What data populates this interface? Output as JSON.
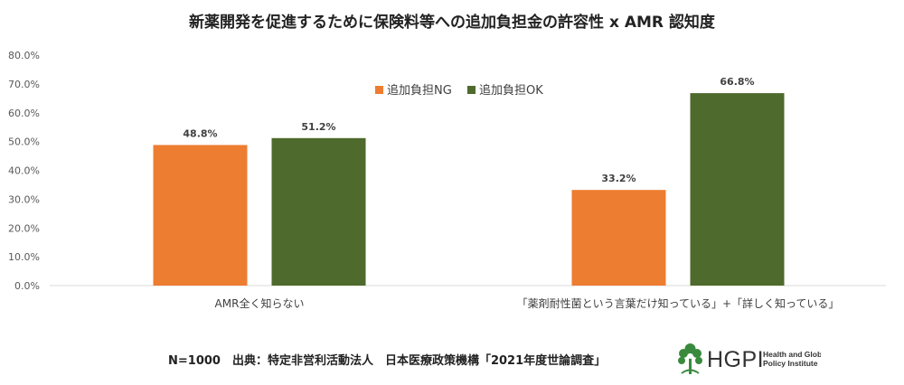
{
  "chart_data": {
    "type": "bar",
    "title": "新薬開発を促進するために保険料等への追加負担金の許容性 x AMR 認知度",
    "categories": [
      "AMR全く知らない",
      "「薬剤耐性菌という言葉だけ知っている」+「詳しく知っている」"
    ],
    "series": [
      {
        "name": "追加負担NG",
        "values": [
          48.8,
          33.2
        ],
        "labels": [
          "48.8%",
          "33.2%"
        ],
        "color": "#ED7D31"
      },
      {
        "name": "追加負担OK",
        "values": [
          51.2,
          66.8
        ],
        "labels": [
          "51.2%",
          "66.8%"
        ],
        "color": "#4E6A2C"
      }
    ],
    "yticks": [
      "0.0%",
      "10.0%",
      "20.0%",
      "30.0%",
      "40.0%",
      "50.0%",
      "60.0%",
      "70.0%",
      "80.0%"
    ],
    "ylim": [
      0,
      80
    ],
    "grid": false,
    "legend_position": "top-center"
  },
  "footer": {
    "text": "N=1000　出典：特定非営利活動法人　日本医療政策機構「2021年度世論調査」"
  },
  "logo": {
    "main": "HGPI",
    "line1": "Health and Global",
    "line2": "Policy Institute",
    "color": "#3A8A3E"
  }
}
